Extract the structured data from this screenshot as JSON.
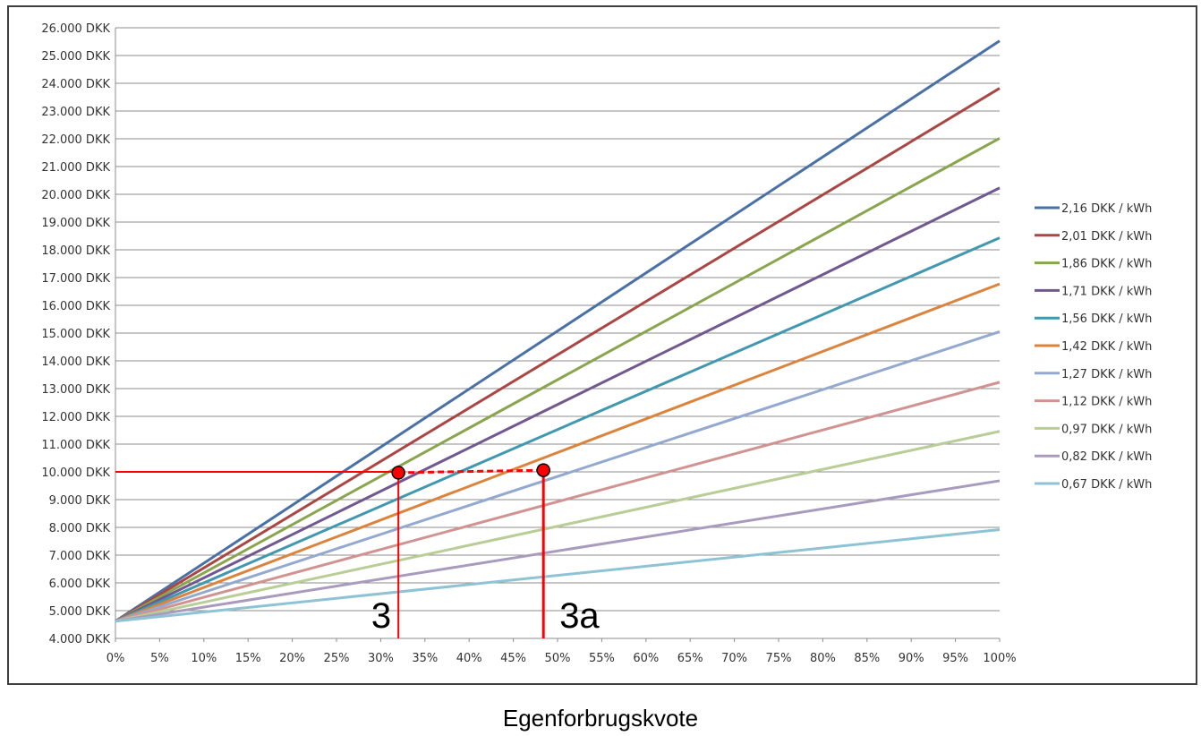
{
  "chart_data": {
    "type": "line",
    "title": "",
    "xlabel": "Egenforbrugskvote",
    "ylabel": "",
    "x": [
      0,
      100
    ],
    "x_ticks": [
      "0%",
      "5%",
      "10%",
      "15%",
      "20%",
      "25%",
      "30%",
      "35%",
      "40%",
      "45%",
      "50%",
      "55%",
      "60%",
      "65%",
      "70%",
      "75%",
      "80%",
      "85%",
      "90%",
      "95%",
      "100%"
    ],
    "y_ticks": [
      "4.000 DKK",
      "5.000 DKK",
      "6.000 DKK",
      "7.000 DKK",
      "8.000 DKK",
      "9.000 DKK",
      "10.000 DKK",
      "11.000 DKK",
      "12.000 DKK",
      "13.000 DKK",
      "14.000 DKK",
      "15.000 DKK",
      "16.000 DKK",
      "17.000 DKK",
      "18.000 DKK",
      "19.000 DKK",
      "20.000 DKK",
      "21.000 DKK",
      "22.000 DKK",
      "23.000 DKK",
      "24.000 DKK",
      "25.000 DKK",
      "26.000 DKK"
    ],
    "xlim": [
      0,
      100
    ],
    "ylim": [
      4000,
      26000
    ],
    "grid": "horizontal",
    "legend_position": "right",
    "series": [
      {
        "name": "2,16 DKK / kWh",
        "color": "#4a71a6",
        "values": [
          4620,
          25530
        ]
      },
      {
        "name": "2,01 DKK / kWh",
        "color": "#aa4643",
        "values": [
          4620,
          23820
        ]
      },
      {
        "name": "1,86 DKK / kWh",
        "color": "#89a54e",
        "values": [
          4620,
          22020
        ]
      },
      {
        "name": "1,71 DKK / kWh",
        "color": "#71588f",
        "values": [
          4620,
          20230
        ]
      },
      {
        "name": "1,56 DKK / kWh",
        "color": "#4198af",
        "values": [
          4620,
          18430
        ]
      },
      {
        "name": "1,42 DKK / kWh",
        "color": "#db843d",
        "values": [
          4620,
          16770
        ]
      },
      {
        "name": "1,27 DKK / kWh",
        "color": "#93a9cf",
        "values": [
          4620,
          15050
        ]
      },
      {
        "name": "1,12 DKK / kWh",
        "color": "#d19392",
        "values": [
          4620,
          13230
        ]
      },
      {
        "name": "0,97 DKK / kWh",
        "color": "#b9cd96",
        "values": [
          4620,
          11460
        ]
      },
      {
        "name": "0,82 DKK / kWh",
        "color": "#a99bbd",
        "values": [
          4620,
          9680
        ]
      },
      {
        "name": "0,67 DKK / kWh",
        "color": "#8ec3d6",
        "values": [
          4620,
          7920
        ]
      }
    ],
    "annotations": {
      "reference_y": 10000,
      "points": [
        {
          "label": "3",
          "x": 32,
          "y": 9970
        },
        {
          "label": "3a",
          "x": 48.4,
          "y": 10060
        }
      ],
      "color": "#ff0000"
    }
  }
}
